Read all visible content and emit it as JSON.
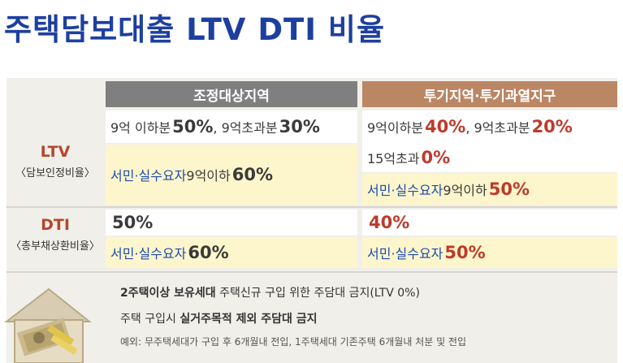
{
  "title": "주택담보대출 LTV DTI 비율",
  "headers": {
    "regulated": "조정대상지역",
    "speculative": "투기지역·투기과열지구"
  },
  "ltv": {
    "label": "LTV",
    "sublabel": "〈담보인정비율〉",
    "regulated_line1": {
      "a": "9억 이하분 ",
      "a_val": "50%",
      "b": ", 9억초과분 ",
      "b_val": "30%"
    },
    "regulated_line2": {
      "a": "서민·실수요자",
      "b": " 9억이하 ",
      "b_val": "60%"
    },
    "speculative_line1": {
      "a": "9억이하분 ",
      "a_val": "40%",
      "b": ", 9억초과분 ",
      "b_val": "20%"
    },
    "speculative_line2": {
      "a": "15억초과 ",
      "a_val": "0%"
    },
    "speculative_line3": {
      "a": "서민·실수요자",
      "b": " 9억이하 ",
      "b_val": "50%"
    }
  },
  "dti": {
    "label": "DTI",
    "sublabel": "〈총부채상환비율〉",
    "regulated_line1": "50%",
    "regulated_line2": {
      "a": "서민·실수요자 ",
      "a_val": "60%"
    },
    "speculative_line1": "40%",
    "speculative_line2": {
      "a": "서민·실수요자 ",
      "a_val": "50%"
    }
  },
  "notes": {
    "line1_bold": "2주택이상 보유세대",
    "line1_rest": " 주택신규 구입 위한 주담대 금지(LTV 0%)",
    "line2_pre": "주택 구입시 ",
    "line2_bold": "실거주목적 제외 주담대 금지",
    "line3": "예외: 무주택세대가 구입 후 6개월내 전입, 1주택세대 기존주택 6개월내 처분 및 전입"
  },
  "colors": {
    "title": "#1d3fa0",
    "header_regulated": "#7f7f7f",
    "header_speculative": "#bb8664",
    "highlight_red": "#c0392b",
    "highlight_blue": "#1c4db0",
    "cream": "#fdf6cc"
  },
  "icons": {
    "illustration": "house-money-icon"
  }
}
